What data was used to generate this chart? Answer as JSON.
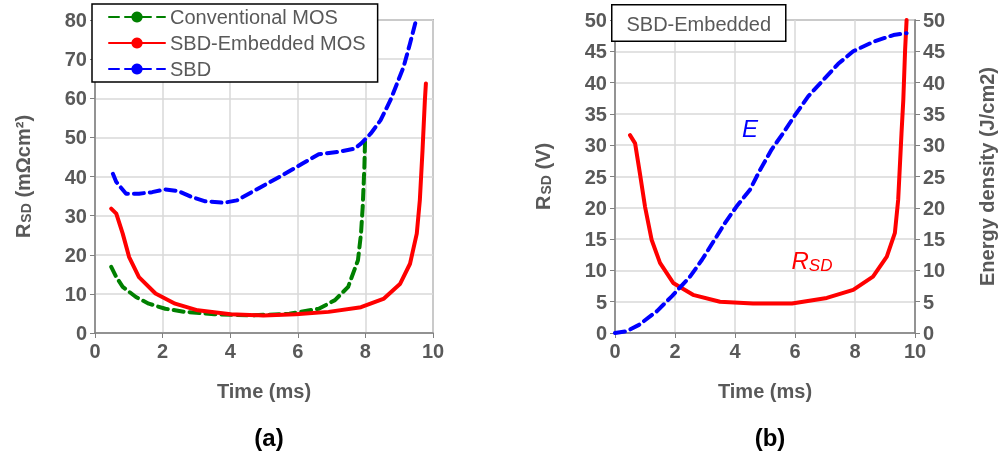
{
  "chart_data": [
    {
      "type": "line",
      "title": "(a)",
      "xlabel": "Time (ms)",
      "ylabel": "R$_{SD}$ (mΩcm²)",
      "xlim": [
        0,
        10
      ],
      "xticks": [
        0,
        2,
        4,
        6,
        8,
        10
      ],
      "ylim": [
        0,
        80
      ],
      "yticks": [
        0,
        10,
        20,
        30,
        40,
        50,
        60,
        70,
        80
      ],
      "grid": true,
      "legend": "top",
      "marker": "none",
      "series": [
        {
          "name": "Conventional MOS",
          "color": "#008000",
          "line_style": "dashed",
          "x": [
            0.48,
            0.63,
            0.82,
            1.21,
            1.59,
            2.08,
            2.66,
            3.53,
            4.59,
            5.75,
            6.62,
            7.1,
            7.49,
            7.78,
            7.87,
            7.92,
            7.97,
            7.99
          ],
          "values": [
            16.9,
            14.3,
            11.8,
            9.2,
            7.5,
            6.2,
            5.4,
            4.8,
            4.5,
            4.9,
            6.2,
            8.4,
            11.8,
            18.6,
            25.4,
            32.2,
            42.5,
            49.3
          ]
        },
        {
          "name": "SBD-Embedded MOS",
          "color": "#ff0000",
          "line_style": "solid",
          "x": [
            0.48,
            0.63,
            0.82,
            1.01,
            1.3,
            1.79,
            2.37,
            3.04,
            4.01,
            4.98,
            5.94,
            6.91,
            7.87,
            8.55,
            9.03,
            9.32,
            9.52,
            9.61,
            9.69,
            9.76,
            9.79
          ],
          "values": [
            31.8,
            30.5,
            25.4,
            19.4,
            14.3,
            10.1,
            7.5,
            5.8,
            4.8,
            4.5,
            4.8,
            5.4,
            6.6,
            8.8,
            12.6,
            17.7,
            25.4,
            33.9,
            46.7,
            59.5,
            63.8
          ]
        },
        {
          "name": "SBD",
          "color": "#0000ff",
          "line_style": "dashed",
          "x": [
            0.53,
            0.63,
            0.92,
            1.3,
            1.69,
            2.08,
            2.46,
            2.85,
            3.24,
            3.82,
            4.2,
            4.78,
            5.46,
            6.14,
            6.62,
            7.2,
            7.68,
            7.87,
            8.16,
            8.45,
            8.74,
            9.13,
            9.32,
            9.5
          ],
          "values": [
            40.7,
            38.6,
            35.6,
            35.6,
            36,
            36.7,
            36.3,
            34.8,
            33.7,
            33.3,
            33.9,
            36.7,
            39.9,
            43.3,
            45.7,
            46.3,
            47.1,
            48.4,
            51,
            54.4,
            59.5,
            68,
            74,
            80
          ]
        }
      ]
    },
    {
      "type": "line",
      "title": "(b)",
      "xlabel": "Time (ms)",
      "ylabel": "R$_{SD}$ (V)",
      "y2label": "Energy density (J/cm2)",
      "xlim": [
        0,
        10
      ],
      "xticks": [
        0,
        2,
        4,
        6,
        8,
        10
      ],
      "ylim": [
        0,
        50
      ],
      "yticks": [
        0,
        5,
        10,
        15,
        20,
        25,
        30,
        35,
        40,
        45,
        50
      ],
      "y2lim": [
        0,
        50
      ],
      "y2ticks": [
        0,
        5,
        10,
        15,
        20,
        25,
        30,
        35,
        40,
        45,
        50
      ],
      "grid": true,
      "marker": "none",
      "annotations": [
        "SBD-Embedded"
      ],
      "series": [
        {
          "name": "R$_{SD}$",
          "color": "#ff0000",
          "line_style": "solid",
          "x": [
            0.5,
            0.67,
            0.83,
            1,
            1.22,
            1.5,
            1.94,
            2.6,
            3.5,
            4.6,
            5.9,
            7.06,
            7.94,
            8.6,
            9.06,
            9.33,
            9.44,
            9.55,
            9.61,
            9.67,
            9.72
          ],
          "values": [
            31.6,
            30.3,
            25.5,
            20.2,
            14.9,
            11.2,
            8,
            6.1,
            5,
            4.7,
            4.7,
            5.6,
            6.9,
            9,
            12.2,
            16,
            21.3,
            31.9,
            37.2,
            45.2,
            50
          ]
        },
        {
          "name": "E",
          "color": "#0000ff",
          "line_style": "dashed",
          "axis": "y2",
          "x": [
            0,
            0.4,
            0.8,
            1.4,
            1.9,
            2.5,
            2.9,
            3.28,
            3.67,
            4.05,
            4.5,
            4.83,
            5.22,
            5.6,
            6,
            6.44,
            6.94,
            7.44,
            7.94,
            8.6,
            9.28,
            9.72
          ],
          "values": [
            0,
            0.3,
            1.3,
            3.5,
            5.9,
            9,
            11.7,
            14.6,
            17.6,
            20.2,
            22.9,
            26,
            29.3,
            31.9,
            34.8,
            37.8,
            40.4,
            43,
            45,
            46.5,
            47.6,
            47.9
          ]
        }
      ]
    }
  ]
}
